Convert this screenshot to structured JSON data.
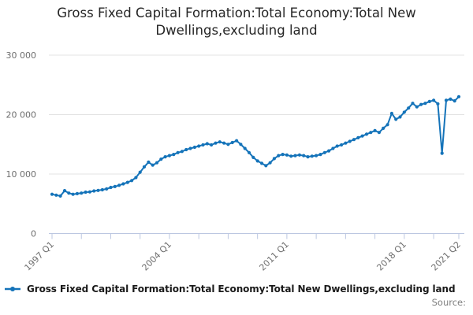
{
  "header": {
    "title": "Gross Fixed Capital Formation:Total Economy:Total New Dwellings,excluding land"
  },
  "legend": {
    "label": "Gross Fixed Capital Formation:Total Economy:Total New Dwellings,excluding land",
    "marker": "line-with-dot",
    "color": "#1473b9"
  },
  "source_label": "Source:",
  "colors": {
    "series_line": "#1473b9",
    "axis_line": "#bcc7e1",
    "gridline": "#e3e3e3",
    "tick_text": "#6e6e6e"
  },
  "chart_data": {
    "type": "line",
    "title": "Gross Fixed Capital Formation:Total Economy:Total New Dwellings,excluding land",
    "x_start": "1997 Q1",
    "x_end": "2021 Q2",
    "x_frequency": "quarterly",
    "ylim": [
      0,
      30000
    ],
    "grid": "horizontal-only",
    "legend_position": "bottom-left",
    "y_ticks": [
      {
        "value": 0,
        "label": "0"
      },
      {
        "value": 10000,
        "label": "10 000"
      },
      {
        "value": 20000,
        "label": "20 000"
      },
      {
        "value": 30000,
        "label": "30 000"
      }
    ],
    "x_ticks": [
      {
        "index": 0,
        "label": "1997 Q1"
      },
      {
        "index": 7
      },
      {
        "index": 14
      },
      {
        "index": 21
      },
      {
        "index": 28,
        "label": "2004 Q1"
      },
      {
        "index": 35
      },
      {
        "index": 42
      },
      {
        "index": 49
      },
      {
        "index": 56,
        "label": "2011 Q1"
      },
      {
        "index": 63
      },
      {
        "index": 70
      },
      {
        "index": 77
      },
      {
        "index": 84,
        "label": "2018 Q1"
      },
      {
        "index": 91
      },
      {
        "index": 97,
        "label": "2021 Q2"
      }
    ],
    "series": [
      {
        "name": "Gross Fixed Capital Formation:Total Economy:Total New Dwellings,excluding land",
        "color": "#1473b9",
        "marker": "dot",
        "values": [
          6600,
          6450,
          6300,
          7200,
          6800,
          6600,
          6700,
          6800,
          6950,
          7000,
          7150,
          7250,
          7350,
          7500,
          7750,
          7900,
          8100,
          8350,
          8600,
          8900,
          9400,
          10300,
          11200,
          12000,
          11500,
          11900,
          12500,
          12900,
          13100,
          13300,
          13600,
          13800,
          14100,
          14300,
          14500,
          14700,
          14900,
          15100,
          14900,
          15200,
          15400,
          15200,
          15000,
          15300,
          15600,
          15000,
          14300,
          13600,
          12800,
          12200,
          11800,
          11400,
          11900,
          12600,
          13100,
          13300,
          13200,
          13000,
          13100,
          13200,
          13100,
          12900,
          13000,
          13100,
          13300,
          13600,
          13900,
          14300,
          14700,
          14900,
          15200,
          15500,
          15800,
          16100,
          16400,
          16700,
          17000,
          17300,
          17000,
          17700,
          18300,
          20200,
          19200,
          19600,
          20400,
          21100,
          21900,
          21300,
          21700,
          21900,
          22200,
          22400,
          21800,
          13500,
          22400,
          22600,
          22300,
          23000
        ]
      }
    ]
  }
}
